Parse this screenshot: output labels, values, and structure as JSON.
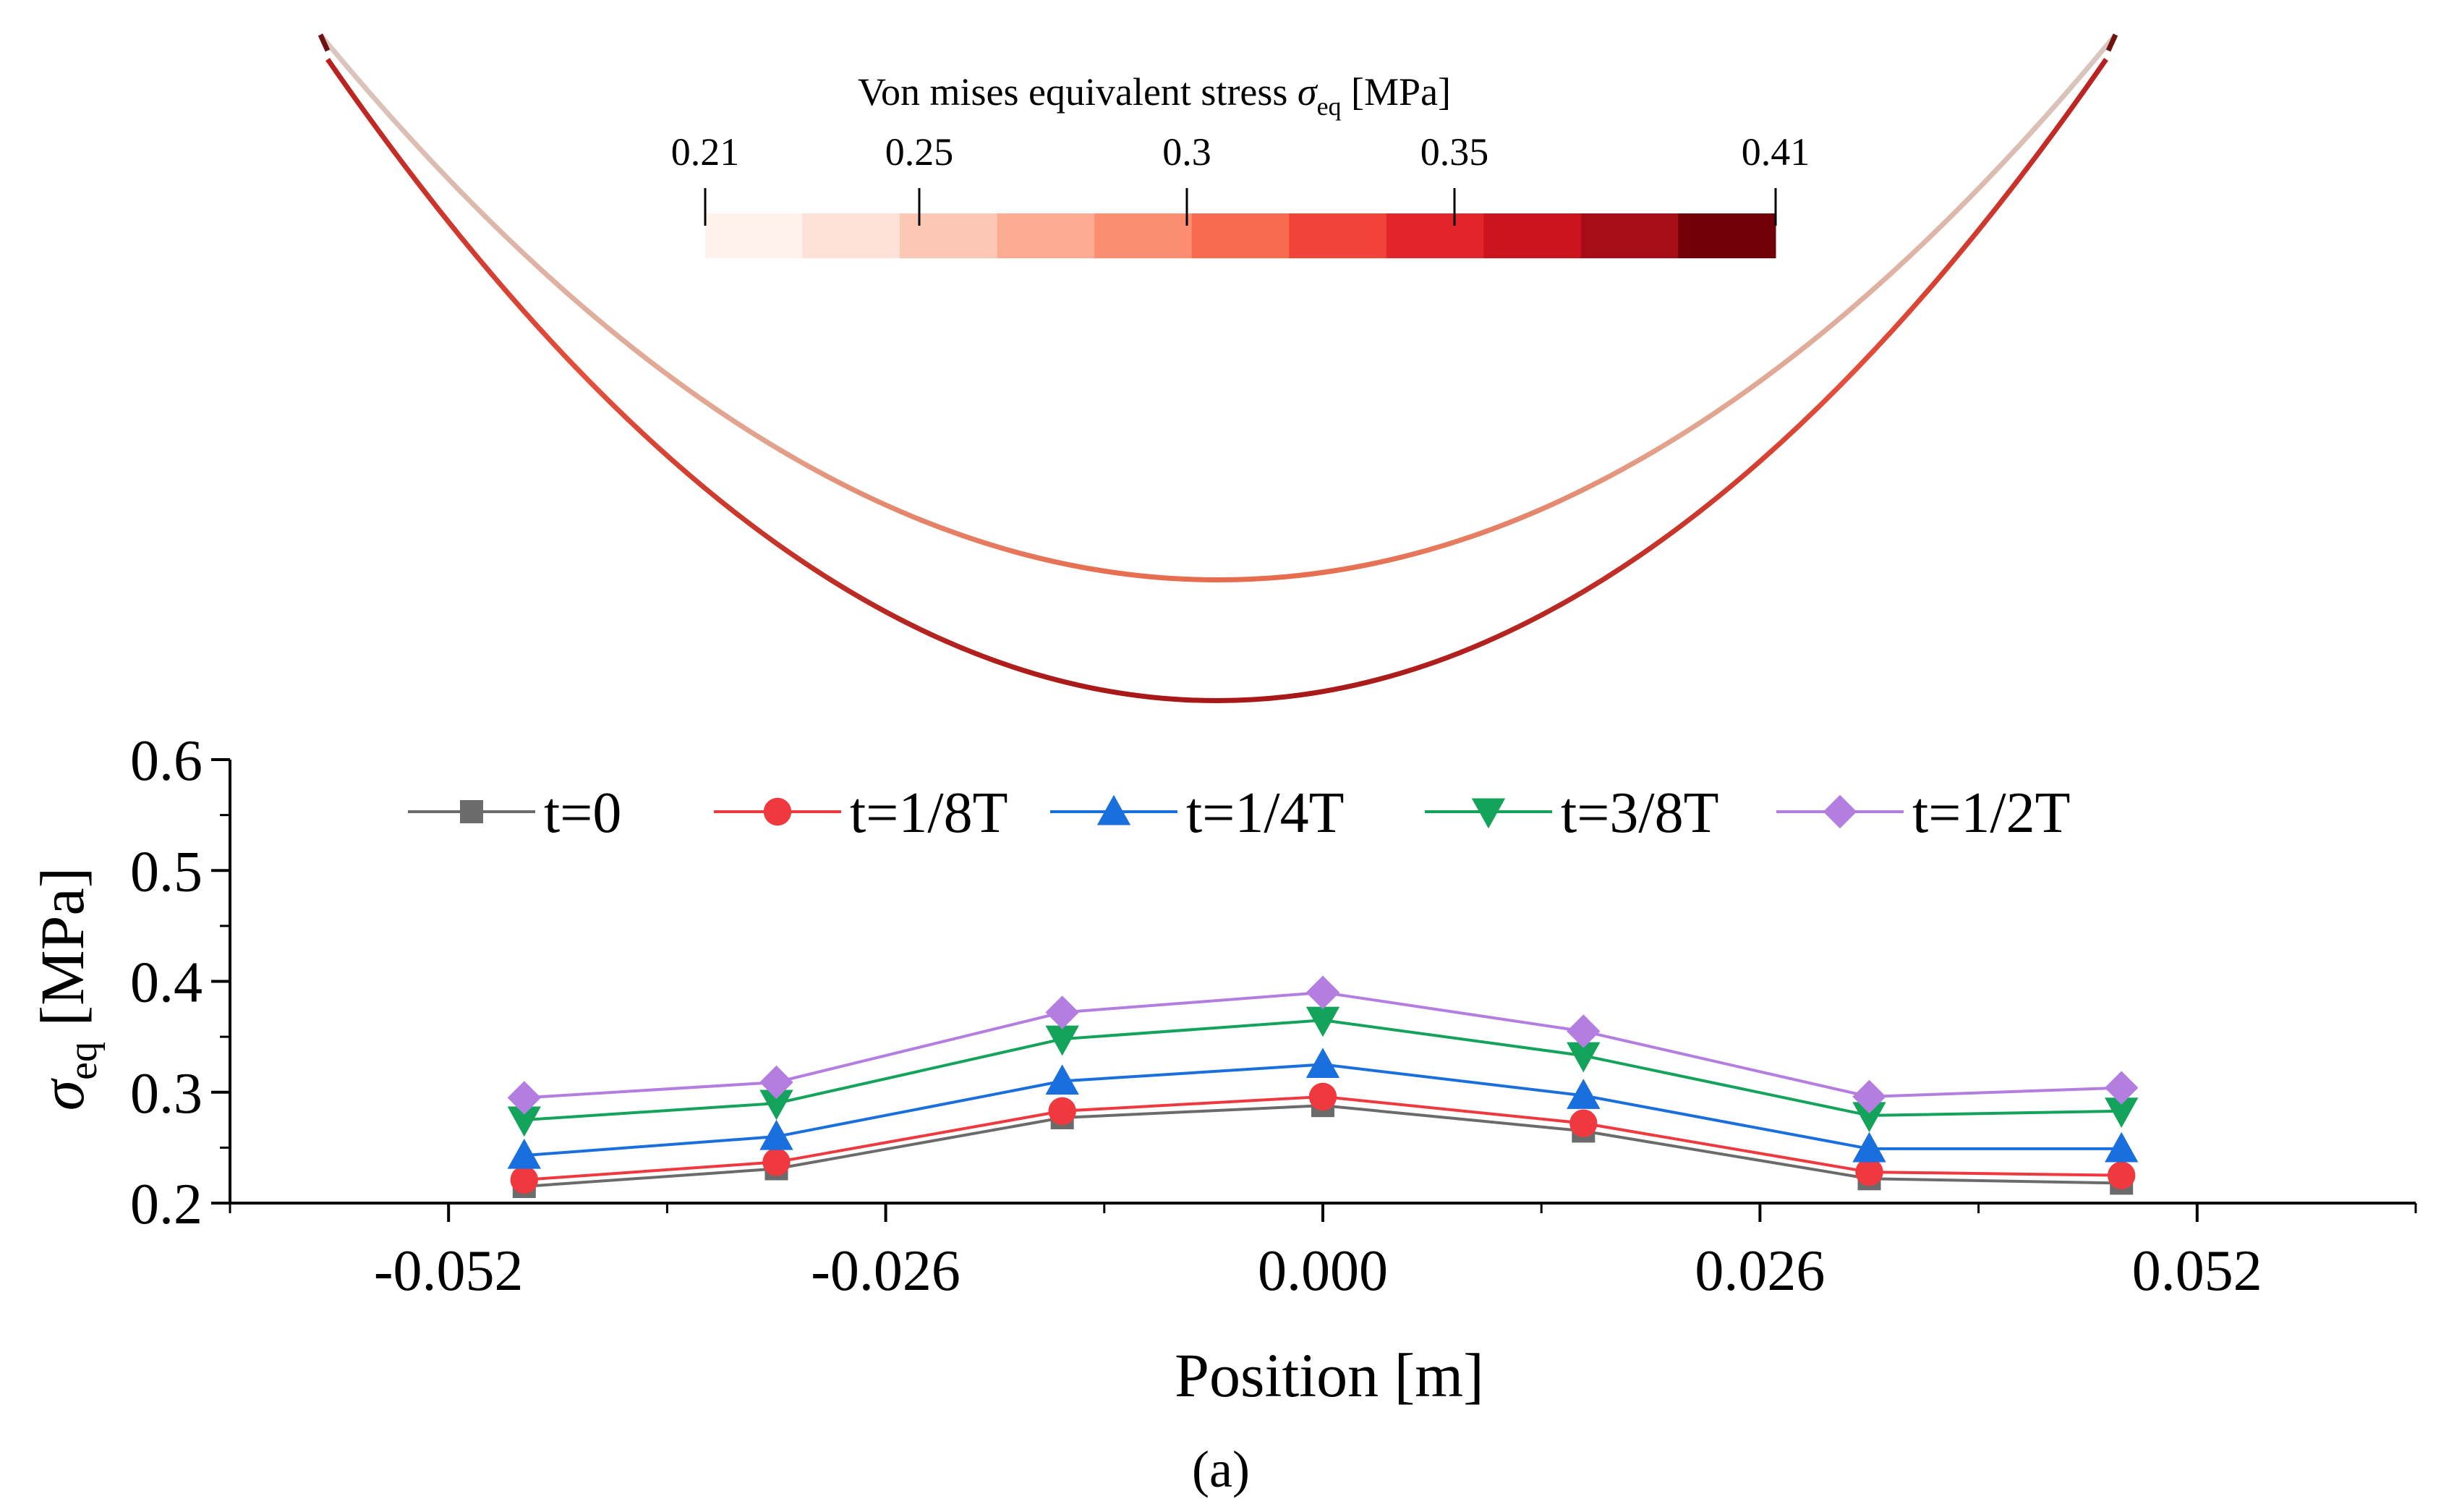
{
  "colorbar": {
    "title_main": "Von mises equivalent stress ",
    "title_symbol": "σ",
    "title_sub": "eq",
    "title_unit": " [MPa]",
    "tick_labels": [
      "0.21",
      "0.25",
      "0.3",
      "0.35",
      "0.41"
    ],
    "tick_values": [
      0.21,
      0.25,
      0.3,
      0.35,
      0.41
    ],
    "range": [
      0.21,
      0.41
    ],
    "bin_colors": [
      "#fff1ec",
      "#fde0d6",
      "#fcc8b6",
      "#fcab92",
      "#fb8d70",
      "#f96b50",
      "#f2433a",
      "#e3242b",
      "#cc141f",
      "#a70d19",
      "#730008"
    ]
  },
  "contour": {
    "outer_color": "#d8c0b6",
    "inner_color": "#e4503c"
  },
  "chart_data": {
    "type": "line",
    "title": "",
    "xlabel": "Position [m]",
    "ylabel_symbol": "σ",
    "ylabel_sub": "eq",
    "ylabel_unit": " [MPa]",
    "x": [
      -0.0475,
      -0.0325,
      -0.0155,
      0.0,
      0.0155,
      0.0325,
      0.0475
    ],
    "xlim": [
      -0.065,
      0.065
    ],
    "ylim": [
      0.2,
      0.6
    ],
    "xticks": [
      -0.052,
      -0.026,
      0.0,
      0.026,
      0.052
    ],
    "xtick_labels": [
      "-0.052",
      "-0.026",
      "0.000",
      "0.026",
      "0.052"
    ],
    "yticks": [
      0.2,
      0.3,
      0.4,
      0.5,
      0.6
    ],
    "ytick_labels": [
      "0.2",
      "0.3",
      "0.4",
      "0.5",
      "0.6"
    ],
    "grid": false,
    "legend_position": "top",
    "series": [
      {
        "name": "t=0",
        "marker": "square",
        "color": "#6b6b6b",
        "values": [
          0.215,
          0.231,
          0.277,
          0.288,
          0.265,
          0.222,
          0.218
        ]
      },
      {
        "name": "t=1/8T",
        "marker": "circle",
        "color": "#f0393f",
        "values": [
          0.221,
          0.237,
          0.283,
          0.296,
          0.272,
          0.228,
          0.225
        ]
      },
      {
        "name": "t=1/4T",
        "marker": "triangle-up",
        "color": "#1a6fdf",
        "values": [
          0.243,
          0.26,
          0.31,
          0.325,
          0.297,
          0.249,
          0.249
        ]
      },
      {
        "name": "t=3/8T",
        "marker": "triangle-down",
        "color": "#14a35a",
        "values": [
          0.275,
          0.29,
          0.348,
          0.365,
          0.333,
          0.279,
          0.283
        ]
      },
      {
        "name": "t=1/2T",
        "marker": "diamond",
        "color": "#b47de0",
        "values": [
          0.295,
          0.309,
          0.372,
          0.39,
          0.355,
          0.296,
          0.304
        ]
      }
    ]
  },
  "caption": "(a)"
}
